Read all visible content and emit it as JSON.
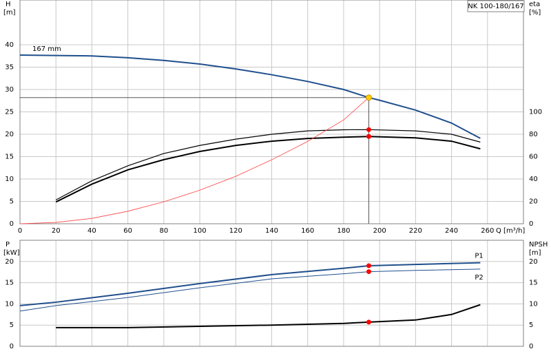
{
  "chart_data": [
    {
      "type": "line",
      "title": "NK 100-180/167",
      "x_label": "Q [m³/h]",
      "y_label": "H",
      "y_unit": "[m]",
      "y2_label": "eta",
      "y2_unit": "[%]",
      "xlim": [
        0,
        280
      ],
      "xticks": [
        0,
        20,
        40,
        60,
        80,
        100,
        120,
        140,
        160,
        180,
        200,
        220,
        240,
        260
      ],
      "ylim": [
        0,
        50
      ],
      "yticks": [
        0,
        5,
        10,
        15,
        20,
        25,
        30,
        35,
        40
      ],
      "y2lim": [
        0,
        200
      ],
      "y2ticks": [
        0,
        20,
        40,
        60,
        80,
        100
      ],
      "grid": true,
      "series": [
        {
          "name": "167 mm",
          "name_position": "start",
          "color": "#1f4e8c",
          "line_width": 2,
          "x": [
            0,
            20,
            40,
            60,
            80,
            100,
            120,
            140,
            160,
            180,
            194,
            200,
            220,
            240,
            256
          ],
          "values": [
            37.7,
            37.6,
            37.5,
            37.1,
            36.5,
            35.7,
            34.6,
            33.3,
            31.8,
            30.0,
            28.2,
            27.6,
            25.4,
            22.5,
            19.1
          ]
        },
        {
          "color": "#000000",
          "line_width": 1.2,
          "axis": "y2",
          "x": [
            20,
            40,
            60,
            80,
            100,
            120,
            140,
            160,
            180,
            194,
            220,
            240,
            256
          ],
          "values": [
            21.3,
            38.4,
            51.8,
            62.8,
            70,
            75.6,
            80,
            83,
            84,
            84.1,
            83,
            80,
            73
          ]
        },
        {
          "color": "#000000",
          "line_width": 2,
          "axis": "y2",
          "x": [
            20,
            40,
            60,
            80,
            100,
            120,
            140,
            160,
            180,
            194,
            220,
            240,
            256
          ],
          "values": [
            19.5,
            35.4,
            48.2,
            57.3,
            64.6,
            70,
            73.8,
            76.2,
            77.4,
            78,
            76.8,
            73.8,
            67
          ]
        },
        {
          "color": "#ff4040",
          "line_width": 0.8,
          "x": [
            0,
            20,
            40,
            60,
            80,
            100,
            120,
            140,
            160,
            180,
            194
          ],
          "values": [
            0,
            0.3,
            1.2,
            2.8,
            4.9,
            7.5,
            10.6,
            14.3,
            18.4,
            23.2,
            28.2
          ]
        }
      ],
      "operating_point": {
        "x": 194,
        "y": 28.2,
        "color": "#ffcc00"
      },
      "markers": [
        {
          "x": 194,
          "y": 84.1,
          "axis": "y2",
          "color": "#ff0000"
        },
        {
          "x": 194,
          "y": 78,
          "axis": "y2",
          "color": "#ff0000"
        }
      ]
    },
    {
      "type": "line",
      "y_label": "P",
      "y_unit": "[kW]",
      "y2_label": "NPSH",
      "y2_unit": "[m]",
      "xlim": [
        0,
        280
      ],
      "xticks": [
        0,
        20,
        40,
        60,
        80,
        100,
        120,
        140,
        160,
        180,
        200,
        220,
        240,
        260
      ],
      "ylim": [
        0,
        25
      ],
      "yticks": [
        0,
        5,
        10,
        15,
        20
      ],
      "y2lim": [
        0,
        25
      ],
      "y2ticks": [
        0,
        5,
        10,
        15,
        20
      ],
      "grid": true,
      "series": [
        {
          "name": "P1",
          "name_position": "end",
          "color": "#1f4e8c",
          "line_width": 2,
          "x": [
            0,
            20,
            60,
            100,
            140,
            180,
            194,
            220,
            256
          ],
          "values": [
            9.6,
            10.4,
            12.5,
            14.8,
            16.9,
            18.4,
            19,
            19.3,
            19.7
          ]
        },
        {
          "name": "P2",
          "name_position": "end",
          "color": "#1f4e8c",
          "line_width": 1,
          "x": [
            0,
            20,
            60,
            100,
            140,
            180,
            194,
            220,
            256
          ],
          "values": [
            8.3,
            9.6,
            11.5,
            13.8,
            15.9,
            17.1,
            17.6,
            17.9,
            18.2
          ]
        },
        {
          "color": "#000000",
          "line_width": 2,
          "axis": "y2",
          "x": [
            20,
            60,
            100,
            140,
            180,
            194,
            220,
            240,
            256
          ],
          "values": [
            4.4,
            4.4,
            4.7,
            5,
            5.4,
            5.7,
            6.2,
            7.5,
            9.8
          ]
        }
      ],
      "markers": [
        {
          "x": 194,
          "y": 19,
          "color": "#ff0000"
        },
        {
          "x": 194,
          "y": 17.6,
          "color": "#ff0000"
        },
        {
          "x": 194,
          "y": 5.7,
          "axis": "y2",
          "color": "#ff0000"
        }
      ]
    }
  ]
}
